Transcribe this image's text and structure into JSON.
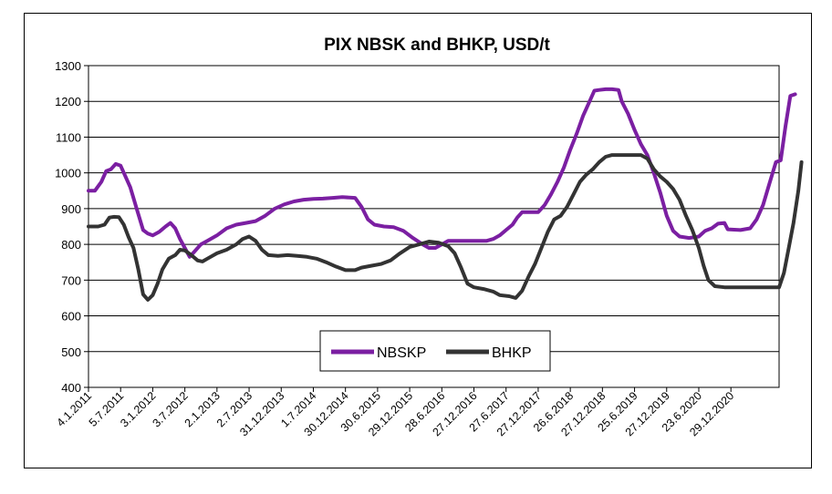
{
  "chart_data": {
    "type": "line",
    "title": "PIX NBSK and BHKP, USD/t",
    "xlabel": "",
    "ylabel": "",
    "ylim": [
      400,
      1300
    ],
    "yticks": [
      400,
      500,
      600,
      700,
      800,
      900,
      1000,
      1100,
      1200,
      1300
    ],
    "grid": "horizontal",
    "legend_position": "bottom-center",
    "x_tick_labels": [
      "4.1.2011",
      "5.7.2011",
      "3.1.2012",
      "3.7.2012",
      "2.1.2013",
      "2.7.2013",
      "31.12.2013",
      "1.7.2014",
      "30.12.2014",
      "30.6.2015",
      "29.12.2015",
      "28.6.2016",
      "27.12.2016",
      "27.6.2017",
      "27.12.2017",
      "26.6.2018",
      "27.12.2018",
      "25.6.2019",
      "27.12.2019",
      "23.6.2020",
      "29.12.2020"
    ],
    "x_range": [
      0,
      21.5
    ],
    "series": [
      {
        "name": "NBSKP",
        "color": "#7b1fa2",
        "points": [
          [
            0,
            950
          ],
          [
            0.2,
            950
          ],
          [
            0.4,
            975
          ],
          [
            0.55,
            1005
          ],
          [
            0.7,
            1010
          ],
          [
            0.85,
            1025
          ],
          [
            1.0,
            1020
          ],
          [
            1.15,
            990
          ],
          [
            1.3,
            960
          ],
          [
            1.5,
            900
          ],
          [
            1.7,
            840
          ],
          [
            1.85,
            830
          ],
          [
            2.0,
            825
          ],
          [
            2.2,
            835
          ],
          [
            2.4,
            850
          ],
          [
            2.55,
            860
          ],
          [
            2.7,
            845
          ],
          [
            2.85,
            815
          ],
          [
            3.0,
            790
          ],
          [
            3.15,
            765
          ],
          [
            3.3,
            780
          ],
          [
            3.5,
            800
          ],
          [
            3.7,
            810
          ],
          [
            4.0,
            825
          ],
          [
            4.3,
            845
          ],
          [
            4.6,
            855
          ],
          [
            4.9,
            860
          ],
          [
            5.2,
            865
          ],
          [
            5.5,
            880
          ],
          [
            5.8,
            900
          ],
          [
            6.1,
            912
          ],
          [
            6.4,
            920
          ],
          [
            6.7,
            925
          ],
          [
            7.0,
            927
          ],
          [
            7.3,
            928
          ],
          [
            7.6,
            930
          ],
          [
            7.9,
            932
          ],
          [
            8.3,
            930
          ],
          [
            8.5,
            905
          ],
          [
            8.7,
            870
          ],
          [
            8.9,
            855
          ],
          [
            9.2,
            850
          ],
          [
            9.5,
            848
          ],
          [
            9.8,
            838
          ],
          [
            10.1,
            818
          ],
          [
            10.4,
            800
          ],
          [
            10.6,
            790
          ],
          [
            10.8,
            790
          ],
          [
            11.0,
            800
          ],
          [
            11.2,
            810
          ],
          [
            11.6,
            810
          ],
          [
            12.0,
            810
          ],
          [
            12.4,
            810
          ],
          [
            12.6,
            815
          ],
          [
            12.8,
            825
          ],
          [
            13.0,
            840
          ],
          [
            13.2,
            855
          ],
          [
            13.35,
            875
          ],
          [
            13.5,
            890
          ],
          [
            13.8,
            890
          ],
          [
            14.0,
            890
          ],
          [
            14.2,
            910
          ],
          [
            14.4,
            940
          ],
          [
            14.6,
            975
          ],
          [
            14.8,
            1015
          ],
          [
            15.0,
            1065
          ],
          [
            15.2,
            1110
          ],
          [
            15.4,
            1160
          ],
          [
            15.6,
            1200
          ],
          [
            15.75,
            1230
          ],
          [
            15.9,
            1232
          ],
          [
            16.1,
            1234
          ],
          [
            16.3,
            1234
          ],
          [
            16.5,
            1232
          ],
          [
            16.6,
            1200
          ],
          [
            16.8,
            1165
          ],
          [
            17.0,
            1120
          ],
          [
            17.2,
            1080
          ],
          [
            17.4,
            1050
          ],
          [
            17.6,
            1000
          ],
          [
            17.8,
            945
          ],
          [
            18.0,
            880
          ],
          [
            18.2,
            838
          ],
          [
            18.4,
            822
          ],
          [
            18.7,
            818
          ],
          [
            19.0,
            822
          ],
          [
            19.2,
            838
          ],
          [
            19.4,
            845
          ],
          [
            19.6,
            858
          ],
          [
            19.8,
            860
          ],
          [
            19.9,
            842
          ],
          [
            20.3,
            840
          ],
          [
            20.6,
            845
          ],
          [
            20.8,
            870
          ],
          [
            21.0,
            910
          ],
          [
            21.2,
            970
          ],
          [
            21.4,
            1030
          ],
          [
            21.55,
            1035
          ],
          [
            21.7,
            1130
          ],
          [
            21.85,
            1215
          ],
          [
            22.0,
            1220
          ]
        ]
      },
      {
        "name": "BHKP",
        "color": "#333333",
        "points": [
          [
            0,
            850
          ],
          [
            0.3,
            850
          ],
          [
            0.5,
            855
          ],
          [
            0.65,
            875
          ],
          [
            0.8,
            877
          ],
          [
            0.95,
            876
          ],
          [
            1.1,
            855
          ],
          [
            1.25,
            820
          ],
          [
            1.4,
            790
          ],
          [
            1.55,
            730
          ],
          [
            1.7,
            660
          ],
          [
            1.85,
            645
          ],
          [
            2.0,
            658
          ],
          [
            2.15,
            690
          ],
          [
            2.3,
            730
          ],
          [
            2.5,
            760
          ],
          [
            2.7,
            770
          ],
          [
            2.85,
            785
          ],
          [
            3.0,
            783
          ],
          [
            3.2,
            770
          ],
          [
            3.4,
            755
          ],
          [
            3.55,
            752
          ],
          [
            3.7,
            760
          ],
          [
            4.0,
            775
          ],
          [
            4.3,
            785
          ],
          [
            4.6,
            800
          ],
          [
            4.8,
            815
          ],
          [
            5.0,
            822
          ],
          [
            5.2,
            810
          ],
          [
            5.4,
            785
          ],
          [
            5.6,
            770
          ],
          [
            5.9,
            768
          ],
          [
            6.2,
            770
          ],
          [
            6.5,
            768
          ],
          [
            6.8,
            765
          ],
          [
            7.1,
            760
          ],
          [
            7.4,
            750
          ],
          [
            7.7,
            738
          ],
          [
            8.0,
            728
          ],
          [
            8.3,
            728
          ],
          [
            8.5,
            735
          ],
          [
            8.8,
            740
          ],
          [
            9.1,
            745
          ],
          [
            9.4,
            755
          ],
          [
            9.7,
            775
          ],
          [
            10.0,
            793
          ],
          [
            10.3,
            800
          ],
          [
            10.6,
            808
          ],
          [
            10.9,
            805
          ],
          [
            11.2,
            795
          ],
          [
            11.4,
            775
          ],
          [
            11.6,
            735
          ],
          [
            11.8,
            690
          ],
          [
            12.0,
            680
          ],
          [
            12.3,
            675
          ],
          [
            12.6,
            668
          ],
          [
            12.8,
            658
          ],
          [
            13.1,
            655
          ],
          [
            13.3,
            650
          ],
          [
            13.5,
            670
          ],
          [
            13.7,
            710
          ],
          [
            13.9,
            745
          ],
          [
            14.1,
            790
          ],
          [
            14.3,
            835
          ],
          [
            14.5,
            870
          ],
          [
            14.7,
            880
          ],
          [
            14.9,
            905
          ],
          [
            15.1,
            940
          ],
          [
            15.3,
            975
          ],
          [
            15.5,
            995
          ],
          [
            15.7,
            1010
          ],
          [
            15.9,
            1030
          ],
          [
            16.1,
            1045
          ],
          [
            16.3,
            1050
          ],
          [
            16.6,
            1050
          ],
          [
            16.9,
            1050
          ],
          [
            17.2,
            1050
          ],
          [
            17.4,
            1040
          ],
          [
            17.6,
            1010
          ],
          [
            17.8,
            990
          ],
          [
            18.0,
            975
          ],
          [
            18.2,
            955
          ],
          [
            18.4,
            925
          ],
          [
            18.6,
            880
          ],
          [
            18.8,
            840
          ],
          [
            19.0,
            790
          ],
          [
            19.15,
            740
          ],
          [
            19.3,
            700
          ],
          [
            19.5,
            683
          ],
          [
            19.8,
            680
          ],
          [
            20.1,
            680
          ],
          [
            20.4,
            680
          ],
          [
            20.8,
            680
          ],
          [
            21.2,
            680
          ],
          [
            21.5,
            680
          ],
          [
            21.65,
            720
          ],
          [
            21.8,
            790
          ],
          [
            21.95,
            860
          ],
          [
            22.1,
            950
          ],
          [
            22.2,
            1030
          ]
        ]
      }
    ]
  }
}
